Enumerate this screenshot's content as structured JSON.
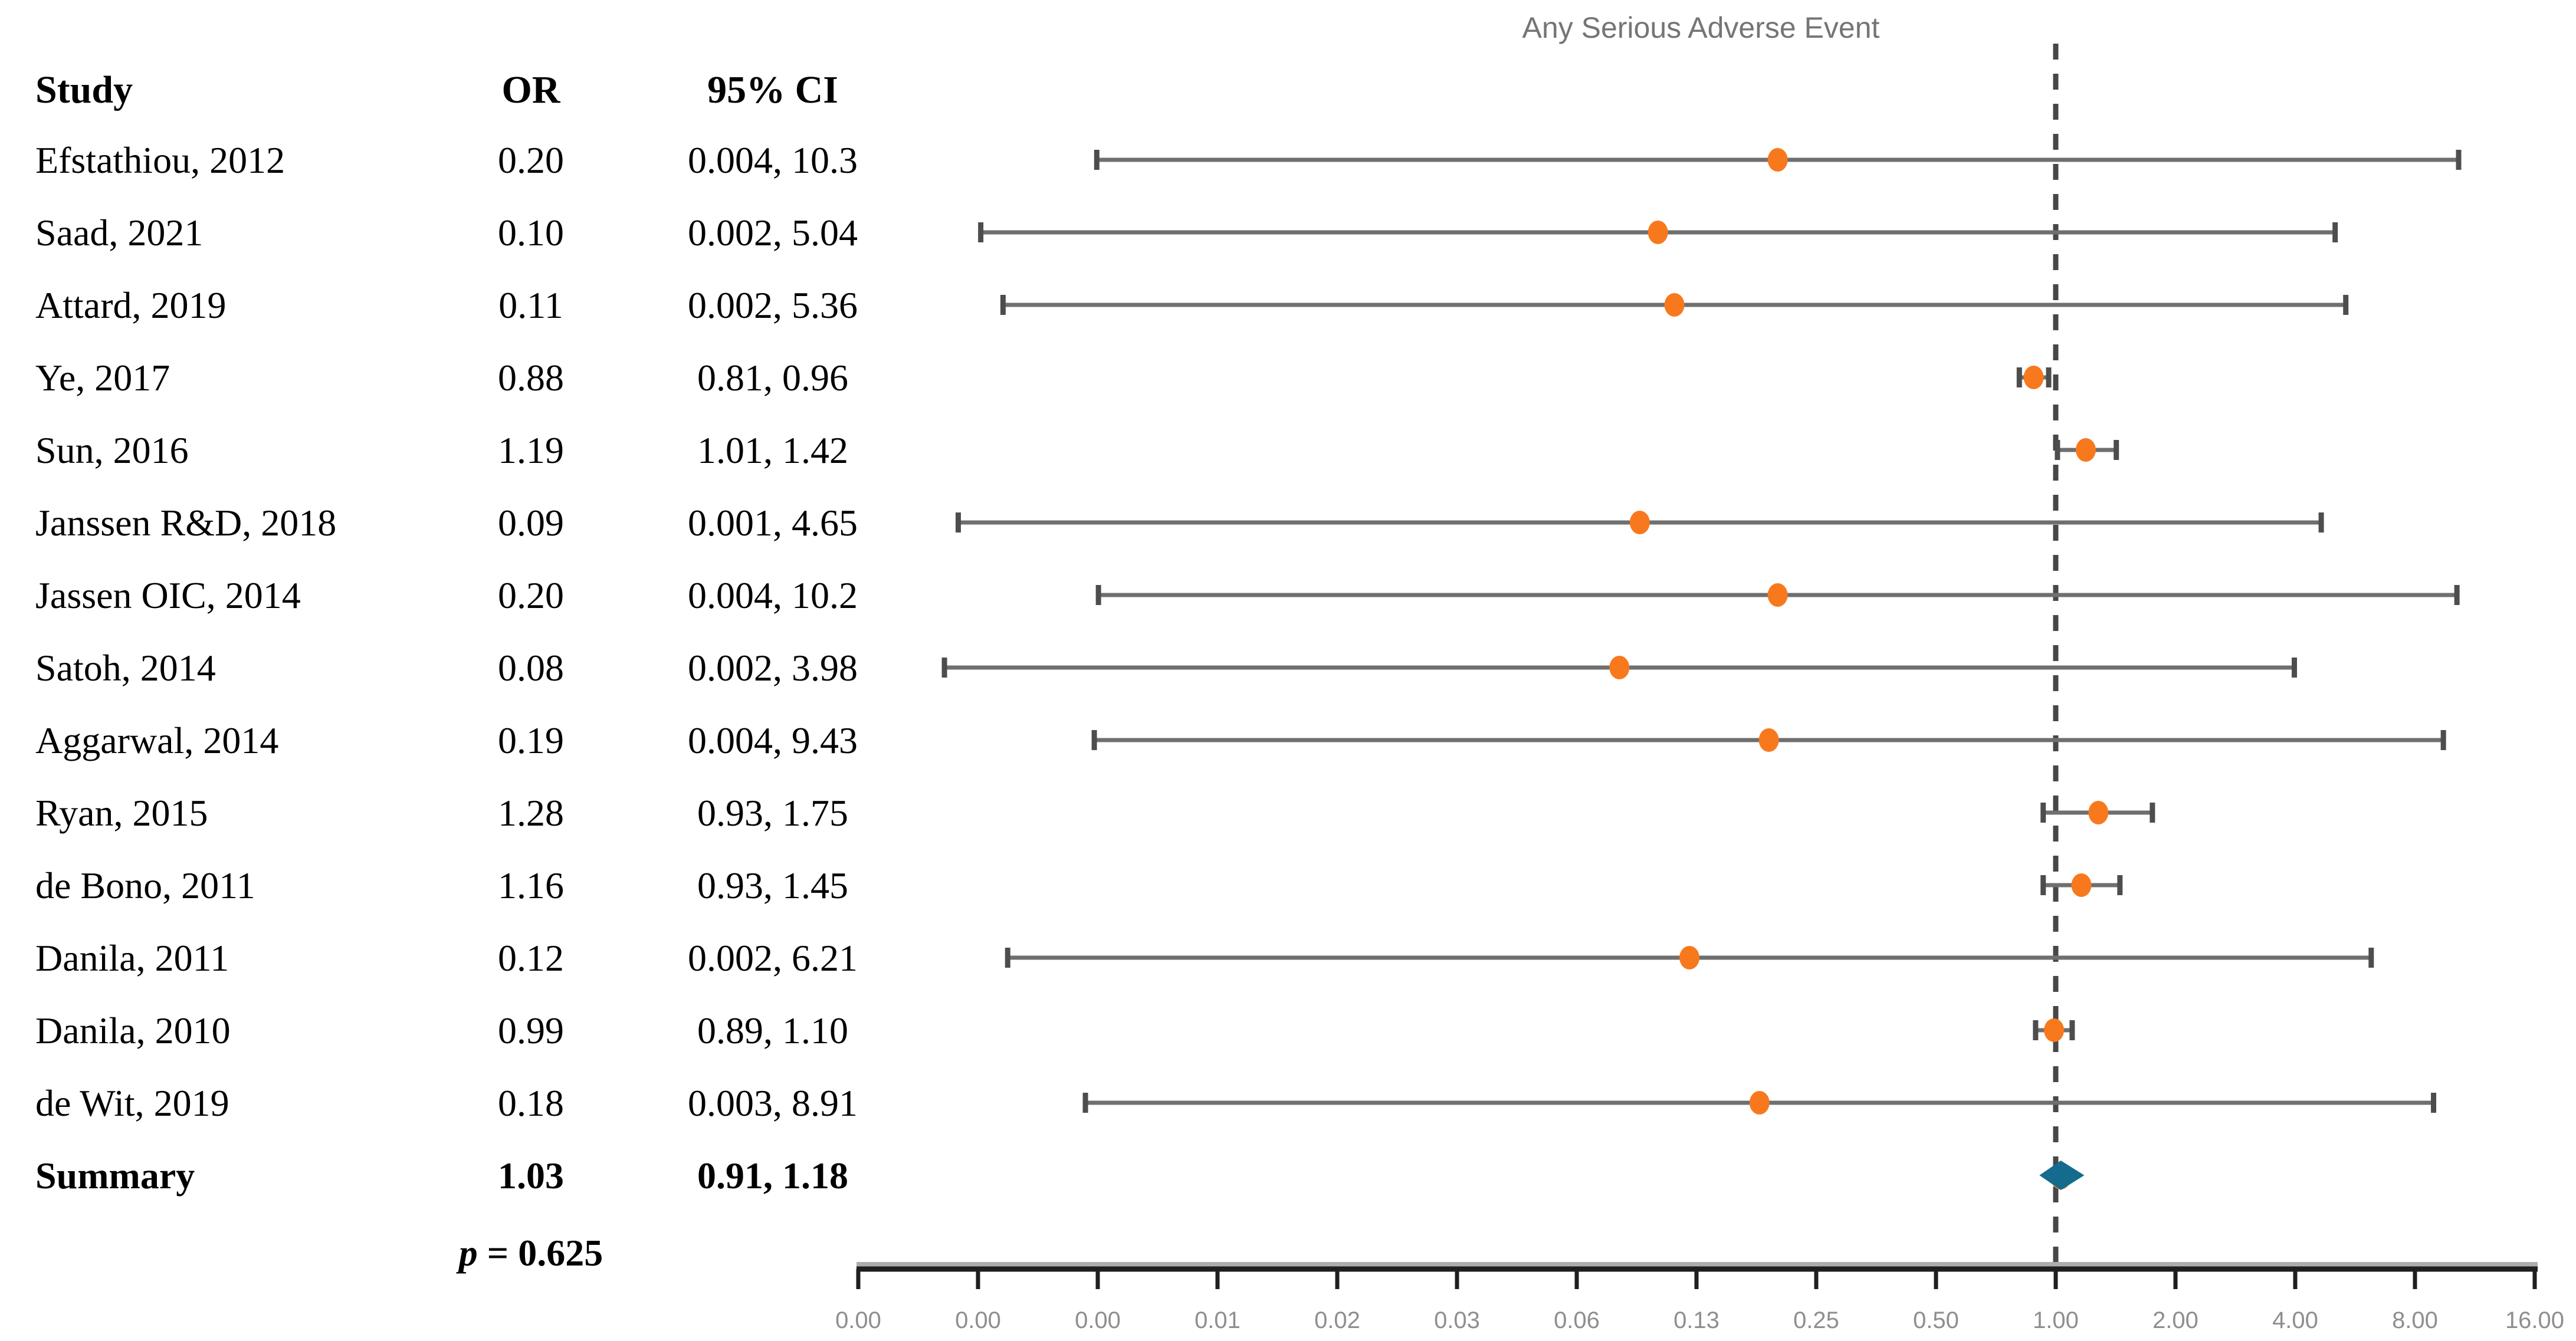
{
  "title": "Any Serious Adverse Event",
  "table": {
    "header": {
      "study": "Study",
      "or": "OR",
      "ci": "95% CI"
    },
    "p_symbol": "p",
    "p_rest": " = 0.625"
  },
  "chart_data": {
    "type": "scatter",
    "subtype": "forest-plot",
    "title": "Any Serious Adverse Event",
    "x_scale": "log2-doubling",
    "x_tick_labels": [
      "0.00",
      "0.00",
      "0.00",
      "0.01",
      "0.02",
      "0.03",
      "0.06",
      "0.13",
      "0.25",
      "0.50",
      "1.00",
      "2.00",
      "4.00",
      "8.00",
      "16.00"
    ],
    "x_tick_values": [
      0.00098,
      0.00195,
      0.0039,
      0.0078,
      0.0156,
      0.03125,
      0.0625,
      0.125,
      0.25,
      0.5,
      1,
      2,
      4,
      8,
      16
    ],
    "reference_line": 1.0,
    "p_value_text": "p = 0.625",
    "legend_position": "none",
    "grid": false,
    "studies": [
      {
        "label": "Efstathiou, 2012",
        "or": 0.2,
        "or_text": "0.20",
        "ci_text": "0.004, 10.3",
        "lo": 0.004,
        "hi": 10.3
      },
      {
        "label": "Saad, 2021",
        "or": 0.1,
        "or_text": "0.10",
        "ci_text": "0.002, 5.04",
        "lo": 0.002,
        "hi": 5.04
      },
      {
        "label": "Attard, 2019",
        "or": 0.11,
        "or_text": "0.11",
        "ci_text": "0.002, 5.36",
        "lo": 0.002,
        "hi": 5.36
      },
      {
        "label": "Ye, 2017",
        "or": 0.88,
        "or_text": "0.88",
        "ci_text": "0.81, 0.96",
        "lo": 0.81,
        "hi": 0.96
      },
      {
        "label": "Sun, 2016",
        "or": 1.19,
        "or_text": "1.19",
        "ci_text": "1.01, 1.42",
        "lo": 1.01,
        "hi": 1.42
      },
      {
        "label": "Janssen R&D, 2018",
        "or": 0.09,
        "or_text": "0.09",
        "ci_text": "0.001, 4.65",
        "lo": 0.001,
        "hi": 4.65
      },
      {
        "label": "Jassen OIC, 2014",
        "or": 0.2,
        "or_text": "0.20",
        "ci_text": "0.004, 10.2",
        "lo": 0.004,
        "hi": 10.2
      },
      {
        "label": "Satoh, 2014",
        "or": 0.08,
        "or_text": "0.08",
        "ci_text": "0.002, 3.98",
        "lo": 0.002,
        "hi": 3.98
      },
      {
        "label": "Aggarwal, 2014",
        "or": 0.19,
        "or_text": "0.19",
        "ci_text": "0.004, 9.43",
        "lo": 0.004,
        "hi": 9.43
      },
      {
        "label": "Ryan, 2015",
        "or": 1.28,
        "or_text": "1.28",
        "ci_text": "0.93, 1.75",
        "lo": 0.93,
        "hi": 1.75
      },
      {
        "label": "de Bono, 2011",
        "or": 1.16,
        "or_text": "1.16",
        "ci_text": "0.93, 1.45",
        "lo": 0.93,
        "hi": 1.45
      },
      {
        "label": "Danila, 2011",
        "or": 0.12,
        "or_text": "0.12",
        "ci_text": "0.002, 6.21",
        "lo": 0.002,
        "hi": 6.21
      },
      {
        "label": "Danila, 2010",
        "or": 0.99,
        "or_text": "0.99",
        "ci_text": "0.89, 1.10",
        "lo": 0.89,
        "hi": 1.1
      },
      {
        "label": "de Wit, 2019",
        "or": 0.18,
        "or_text": "0.18",
        "ci_text": "0.003, 8.91",
        "lo": 0.003,
        "hi": 8.91
      },
      {
        "label": "Summary",
        "or": 1.03,
        "or_text": "1.03",
        "ci_text": "0.91, 1.18",
        "lo": 0.91,
        "hi": 1.18,
        "summary": true
      }
    ],
    "colors": {
      "marker": "#F8791D",
      "summary_diamond": "#146B8E",
      "ci_line": "#6F6F6F",
      "ci_cap": "#4D4D4D",
      "reference_dash": "#474747",
      "axis_line": "#1F1F1F",
      "axis_band": "#ADADAD",
      "tick_label": "#8E8E8E",
      "title": "#757575",
      "text": "#000000"
    }
  }
}
